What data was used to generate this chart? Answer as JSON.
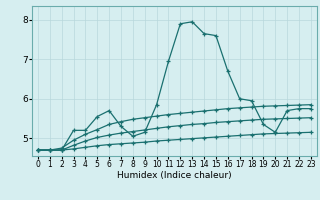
{
  "xlabel": "Humidex (Indice chaleur)",
  "xlim": [
    -0.5,
    23.5
  ],
  "ylim": [
    4.55,
    8.35
  ],
  "yticks": [
    5,
    6,
    7,
    8
  ],
  "bg_color": "#d6eef0",
  "grid_color": "#b8d8dc",
  "line_color": "#1a7070",
  "line1_x": [
    0,
    1,
    2,
    3,
    4,
    5,
    6,
    7,
    8,
    9,
    10,
    11,
    12,
    13,
    14,
    15,
    16,
    17,
    18,
    19,
    20,
    21,
    22,
    23
  ],
  "line1_y": [
    4.7,
    4.7,
    4.7,
    5.2,
    5.2,
    5.55,
    5.7,
    5.3,
    5.05,
    5.15,
    5.85,
    6.95,
    7.9,
    7.95,
    7.65,
    7.6,
    6.7,
    6.0,
    5.95,
    5.35,
    5.15,
    5.7,
    5.75,
    5.75
  ],
  "line2_x": [
    0,
    1,
    2,
    3,
    4,
    5,
    6,
    7,
    8,
    9,
    10,
    11,
    12,
    13,
    14,
    15,
    16,
    17,
    18,
    19,
    20,
    21,
    22,
    23
  ],
  "line2_y": [
    4.7,
    4.7,
    4.75,
    4.95,
    5.1,
    5.22,
    5.35,
    5.42,
    5.48,
    5.52,
    5.56,
    5.6,
    5.63,
    5.66,
    5.69,
    5.72,
    5.75,
    5.77,
    5.79,
    5.81,
    5.82,
    5.83,
    5.84,
    5.85
  ],
  "line3_x": [
    0,
    1,
    2,
    3,
    4,
    5,
    6,
    7,
    8,
    9,
    10,
    11,
    12,
    13,
    14,
    15,
    16,
    17,
    18,
    19,
    20,
    21,
    22,
    23
  ],
  "line3_y": [
    4.7,
    4.7,
    4.7,
    4.82,
    4.93,
    5.02,
    5.08,
    5.13,
    5.17,
    5.21,
    5.25,
    5.29,
    5.32,
    5.35,
    5.37,
    5.4,
    5.42,
    5.44,
    5.46,
    5.48,
    5.49,
    5.5,
    5.51,
    5.52
  ],
  "line4_x": [
    0,
    1,
    2,
    3,
    4,
    5,
    6,
    7,
    8,
    9,
    10,
    11,
    12,
    13,
    14,
    15,
    16,
    17,
    18,
    19,
    20,
    21,
    22,
    23
  ],
  "line4_y": [
    4.7,
    4.7,
    4.7,
    4.73,
    4.77,
    4.81,
    4.84,
    4.86,
    4.88,
    4.9,
    4.93,
    4.95,
    4.97,
    4.99,
    5.01,
    5.03,
    5.05,
    5.07,
    5.09,
    5.11,
    5.12,
    5.13,
    5.14,
    5.15
  ],
  "xtick_labels": [
    "0",
    "1",
    "2",
    "3",
    "4",
    "5",
    "6",
    "7",
    "8",
    "9",
    "10",
    "11",
    "12",
    "13",
    "14",
    "15",
    "16",
    "17",
    "18",
    "19",
    "20",
    "21",
    "22",
    "23"
  ],
  "tick_fontsize": 5.5,
  "xlabel_fontsize": 6.5
}
